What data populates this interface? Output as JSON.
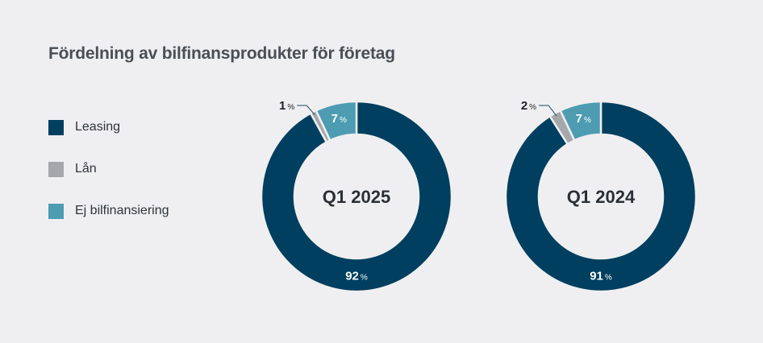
{
  "chart_data": {
    "type": "pie",
    "title": "Fördelning av bilfinansprodukter för företag",
    "legend": [
      {
        "label": "Leasing",
        "color": "#003f5f"
      },
      {
        "label": "Lån",
        "color": "#a6a7aa"
      },
      {
        "label": "Ej bilfinansiering",
        "color": "#4d9cb2"
      }
    ],
    "charts": [
      {
        "label": "Q1 2025",
        "slices": [
          {
            "name": "Leasing",
            "value": 92,
            "text": "92",
            "color": "#003f5f"
          },
          {
            "name": "Lån",
            "value": 1,
            "text": "1",
            "color": "#a6a7aa"
          },
          {
            "name": "Ej bilfinansiering",
            "value": 7,
            "text": "7",
            "color": "#4d9cb2"
          }
        ]
      },
      {
        "label": "Q1 2024",
        "slices": [
          {
            "name": "Leasing",
            "value": 91,
            "text": "91",
            "color": "#003f5f"
          },
          {
            "name": "Lån",
            "value": 2,
            "text": "2",
            "color": "#a6a7aa"
          },
          {
            "name": "Ej bilfinansiering",
            "value": 7,
            "text": "7",
            "color": "#4d9cb2"
          }
        ]
      }
    ],
    "percent_sign": "%"
  }
}
